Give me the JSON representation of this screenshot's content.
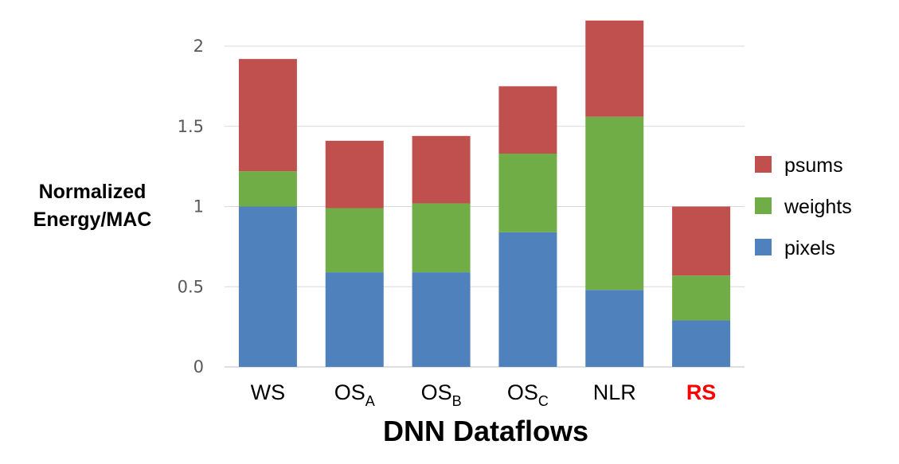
{
  "chart_data": {
    "type": "bar",
    "stacked": true,
    "title": "",
    "xlabel": "DNN Dataflows",
    "ylabel": [
      "Normalized",
      "Energy/MAC"
    ],
    "ylim": [
      0,
      2.2
    ],
    "yticks": [
      0,
      0.5,
      1,
      1.5,
      2
    ],
    "ytick_labels": [
      "0",
      "0.5",
      "1",
      "1.5",
      "2"
    ],
    "grid": true,
    "legend_position": "right",
    "categories": [
      {
        "base": "WS",
        "sub": "",
        "highlight": false
      },
      {
        "base": "OS",
        "sub": "A",
        "highlight": false
      },
      {
        "base": "OS",
        "sub": "B",
        "highlight": false
      },
      {
        "base": "OS",
        "sub": "C",
        "highlight": false
      },
      {
        "base": "NLR",
        "sub": "",
        "highlight": false
      },
      {
        "base": "RS",
        "sub": "",
        "highlight": true
      }
    ],
    "series": [
      {
        "name": "pixels",
        "color": "#4f81bd",
        "values": [
          1.0,
          0.59,
          0.59,
          0.84,
          0.48,
          0.29
        ]
      },
      {
        "name": "weights",
        "color": "#70ad47",
        "values": [
          0.22,
          0.4,
          0.43,
          0.49,
          1.08,
          0.28
        ]
      },
      {
        "name": "psums",
        "color": "#c0504d",
        "values": [
          0.7,
          0.42,
          0.42,
          0.42,
          0.6,
          0.43
        ]
      }
    ],
    "legend_order": [
      "psums",
      "weights",
      "pixels"
    ]
  }
}
